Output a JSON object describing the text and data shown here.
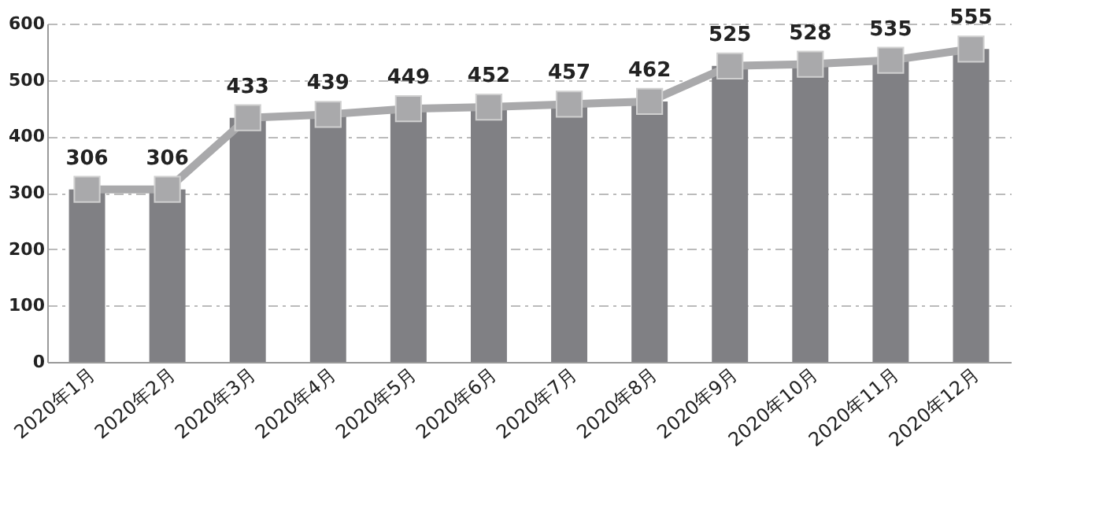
{
  "chart_data": {
    "type": "bar",
    "categories": [
      "2020年1月",
      "2020年2月",
      "2020年3月",
      "2020年4月",
      "2020年5月",
      "2020年6月",
      "2020年7月",
      "2020年8月",
      "2020年9月",
      "2020年10月",
      "2020年11月",
      "2020年12月"
    ],
    "series": [
      {
        "color": "#808084",
        "values": [
          306,
          306,
          433,
          439,
          449,
          452,
          457,
          462,
          525,
          528,
          535,
          555
        ]
      },
      {
        "type": "line",
        "color": "#a9a9ab",
        "marker": "square",
        "values": [
          306,
          306,
          433,
          439,
          449,
          452,
          457,
          462,
          525,
          528,
          535,
          555
        ],
        "value_labels": [
          "306",
          "306",
          "433",
          "439",
          "449",
          "452",
          "457",
          "462",
          "525",
          "528",
          "535",
          "555"
        ]
      }
    ],
    "ylim": [
      0,
      600
    ],
    "yticks": [
      0,
      100,
      200,
      300,
      400,
      500,
      600
    ],
    "grid": "y"
  }
}
